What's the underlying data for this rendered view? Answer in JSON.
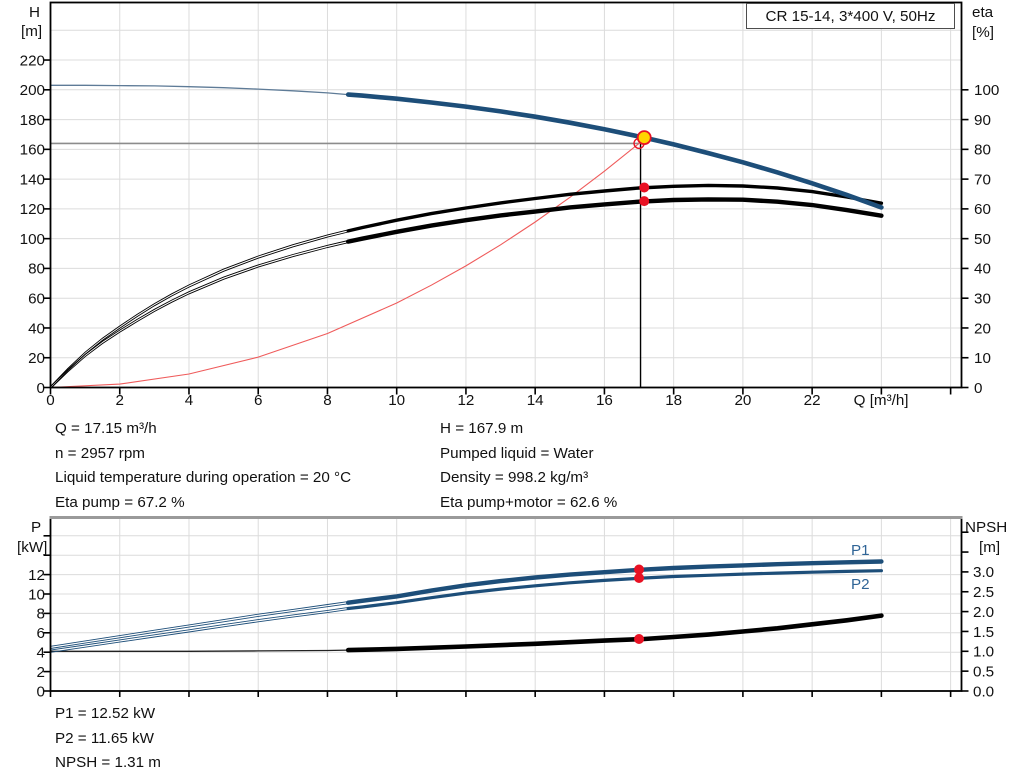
{
  "title_box": {
    "label": "CR 15-14, 3*400 V, 50Hz"
  },
  "axis_labels": {
    "h": "H",
    "m": "[m]",
    "eta": "eta",
    "pct": "[%]",
    "p": "P",
    "kw": "[kW]",
    "npsh": "NPSH",
    "m2": "[m]",
    "q": "Q [m³/h]"
  },
  "curve_labels": {
    "p1": "P1",
    "p2": "P2"
  },
  "readouts": {
    "top_left": [
      "Q = 17.15 m³/h",
      "n = 2957 rpm",
      "Liquid temperature during operation = 20 °C",
      "Eta pump = 67.2 %"
    ],
    "top_right": [
      "H = 167.9 m",
      "Pumped liquid = Water",
      "Density = 998.2 kg/m³",
      "Eta pump+motor = 62.6 %"
    ],
    "bottom": [
      "P1 = 12.52 kW",
      "P2 = 11.65 kW",
      "NPSH = 1.31 m"
    ]
  },
  "colors": {
    "curve_blue": "#1d4e79",
    "thin_blue": "#5e7b97",
    "black": "#000000",
    "red": "#e81123",
    "light_red": "#ef5b5b",
    "yellow": "#ffd400",
    "grid": "#dcdcdc",
    "gray_line": "#8c8c8c",
    "frame_gray": "#9a9a9a",
    "label_blue": "#2f6496"
  },
  "chart_data": [
    {
      "type": "line",
      "title": "CR 15-14, 3*400 V, 50Hz",
      "xlabel": "Q [m³/h]",
      "ylabel_left": "H [m]",
      "ylabel_right": "eta [%]",
      "x_range": [
        0,
        26.3
      ],
      "x_grid_step": 2,
      "y_left_range": [
        0,
        258
      ],
      "y_right_range": [
        0,
        129
      ],
      "x_tick_labels": [
        "0",
        "2",
        "4",
        "6",
        "8",
        "10",
        "12",
        "14",
        "16",
        "18",
        "20",
        "22"
      ],
      "y_left_tick_labels": [
        "0",
        "20",
        "40",
        "60",
        "80",
        "100",
        "120",
        "140",
        "160",
        "180",
        "200",
        "220"
      ],
      "y_right_tick_labels": [
        "0",
        "10",
        "20",
        "30",
        "40",
        "50",
        "60",
        "70",
        "80",
        "90",
        "100"
      ],
      "grid": true,
      "legend": "none",
      "series": [
        {
          "name": "QH head curve",
          "axis": "left",
          "style": "thin-then-thick",
          "thin_until": 8.6,
          "points": [
            [
              0,
              203
            ],
            [
              1,
              203
            ],
            [
              2,
              202.8
            ],
            [
              3,
              202.6
            ],
            [
              4,
              202.1
            ],
            [
              5,
              201.4
            ],
            [
              6,
              200.5
            ],
            [
              7,
              199.3
            ],
            [
              8,
              197.9
            ],
            [
              8.6,
              196.8
            ],
            [
              9,
              196.1
            ],
            [
              10,
              194
            ],
            [
              11,
              191.5
            ],
            [
              12,
              188.7
            ],
            [
              13,
              185.5
            ],
            [
              14,
              181.9
            ],
            [
              15,
              177.9
            ],
            [
              16,
              173.5
            ],
            [
              17.15,
              167.9
            ],
            [
              18,
              163.3
            ],
            [
              19,
              157.5
            ],
            [
              20,
              151.3
            ],
            [
              21,
              144.5
            ],
            [
              22,
              137.2
            ],
            [
              23,
              129.4
            ],
            [
              24,
              121
            ]
          ]
        },
        {
          "name": "Eta pump",
          "axis": "right",
          "style": "hollow-then-thick",
          "thin_until": 8.6,
          "points": [
            [
              0,
              0
            ],
            [
              0.5,
              6
            ],
            [
              1,
              11.5
            ],
            [
              1.5,
              16.2
            ],
            [
              2,
              20.3
            ],
            [
              2.5,
              24.2
            ],
            [
              3,
              27.8
            ],
            [
              3.5,
              31.1
            ],
            [
              4,
              34.1
            ],
            [
              5,
              39.4
            ],
            [
              6,
              43.8
            ],
            [
              7,
              47.6
            ],
            [
              8,
              50.9
            ],
            [
              8.6,
              52.6
            ],
            [
              9,
              53.7
            ],
            [
              10,
              56.2
            ],
            [
              11,
              58.4
            ],
            [
              12,
              60.3
            ],
            [
              13,
              62
            ],
            [
              14,
              63.5
            ],
            [
              15,
              64.9
            ],
            [
              16,
              66
            ],
            [
              17,
              67
            ],
            [
              18,
              67.6
            ],
            [
              19,
              67.9
            ],
            [
              20,
              67.7
            ],
            [
              21,
              67
            ],
            [
              22,
              65.8
            ],
            [
              23,
              64
            ],
            [
              24,
              61.9
            ]
          ]
        },
        {
          "name": "Eta pump+motor",
          "axis": "right",
          "style": "hollow-then-thick",
          "thin_until": 8.6,
          "points": [
            [
              0,
              0
            ],
            [
              0.5,
              5.6
            ],
            [
              1,
              10.7
            ],
            [
              1.5,
              15.1
            ],
            [
              2,
              18.9
            ],
            [
              2.5,
              22.5
            ],
            [
              3,
              25.9
            ],
            [
              3.5,
              29
            ],
            [
              4,
              31.8
            ],
            [
              5,
              36.7
            ],
            [
              6,
              40.8
            ],
            [
              7,
              44.3
            ],
            [
              8,
              47.4
            ],
            [
              8.6,
              49
            ],
            [
              9,
              50
            ],
            [
              10,
              52.3
            ],
            [
              11,
              54.4
            ],
            [
              12,
              56.2
            ],
            [
              13,
              57.8
            ],
            [
              14,
              59.1
            ],
            [
              15,
              60.5
            ],
            [
              16,
              61.5
            ],
            [
              17,
              62.4
            ],
            [
              18,
              63
            ],
            [
              19,
              63.2
            ],
            [
              20,
              63.1
            ],
            [
              21,
              62.4
            ],
            [
              22,
              61.3
            ],
            [
              23,
              59.6
            ],
            [
              24,
              57.7
            ]
          ]
        },
        {
          "name": "System curve",
          "axis": "left",
          "style": "hairline-red",
          "points": [
            [
              0,
              0
            ],
            [
              2,
              2.3
            ],
            [
              4,
              9.1
            ],
            [
              6,
              20.4
            ],
            [
              8,
              36.3
            ],
            [
              10,
              56.8
            ],
            [
              11,
              68.7
            ],
            [
              12,
              81.7
            ],
            [
              13,
              95.9
            ],
            [
              14,
              111.2
            ],
            [
              15,
              127.7
            ],
            [
              16,
              145.3
            ],
            [
              17,
              164
            ]
          ]
        }
      ],
      "duty_point": {
        "q": 17.15,
        "h": 167.9,
        "eta_pump": 67.2,
        "eta_pump_motor": 62.6,
        "requested_q": 17.0,
        "requested_h": 164.0
      }
    },
    {
      "type": "line",
      "title": "",
      "xlabel": "",
      "ylabel_left": "P [kW]",
      "ylabel_right": "NPSH [m]",
      "x_range": [
        0,
        26.3
      ],
      "x_grid_step": 2,
      "y_left_range": [
        0,
        17.9
      ],
      "y_right_range": [
        0,
        4.37
      ],
      "y_left_tick_labels": [
        "0",
        "2",
        "4",
        "6",
        "8",
        "10",
        "12"
      ],
      "y_right_tick_labels": [
        "0.0",
        "0.5",
        "1.0",
        "1.5",
        "2.0",
        "2.5",
        "3.0"
      ],
      "grid": true,
      "legend": "inline (P1, P2)",
      "series": [
        {
          "name": "P1",
          "axis": "left",
          "style": "hollow-then-thick",
          "thin_until": 8.6,
          "points": [
            [
              0,
              4.5
            ],
            [
              1,
              5.05
            ],
            [
              2,
              5.6
            ],
            [
              3,
              6.15
            ],
            [
              4,
              6.7
            ],
            [
              5,
              7.25
            ],
            [
              6,
              7.8
            ],
            [
              7,
              8.3
            ],
            [
              8,
              8.8
            ],
            [
              8.6,
              9.1
            ],
            [
              9,
              9.3
            ],
            [
              10,
              9.75
            ],
            [
              11,
              10.35
            ],
            [
              12,
              10.9
            ],
            [
              13,
              11.33
            ],
            [
              14,
              11.7
            ],
            [
              15,
              12
            ],
            [
              16,
              12.25
            ],
            [
              17,
              12.48
            ],
            [
              17.15,
              12.52
            ],
            [
              18,
              12.68
            ],
            [
              19,
              12.82
            ],
            [
              20,
              12.95
            ],
            [
              21,
              13.07
            ],
            [
              22,
              13.18
            ],
            [
              23,
              13.27
            ],
            [
              24,
              13.35
            ]
          ]
        },
        {
          "name": "P2",
          "axis": "left",
          "style": "hollow-then-thick",
          "thin_until": 8.6,
          "points": [
            [
              0,
              4.1
            ],
            [
              1,
              4.63
            ],
            [
              2,
              5.15
            ],
            [
              3,
              5.68
            ],
            [
              4,
              6.2
            ],
            [
              5,
              6.73
            ],
            [
              6,
              7.25
            ],
            [
              7,
              7.73
            ],
            [
              8,
              8.2
            ],
            [
              8.6,
              8.5
            ],
            [
              9,
              8.66
            ],
            [
              10,
              9.1
            ],
            [
              11,
              9.62
            ],
            [
              12,
              10.1
            ],
            [
              13,
              10.5
            ],
            [
              14,
              10.85
            ],
            [
              15,
              11.15
            ],
            [
              16,
              11.4
            ],
            [
              17,
              11.62
            ],
            [
              17.15,
              11.65
            ],
            [
              18,
              11.8
            ],
            [
              19,
              11.93
            ],
            [
              20,
              12.05
            ],
            [
              21,
              12.15
            ],
            [
              22,
              12.25
            ],
            [
              23,
              12.33
            ],
            [
              24,
              12.4
            ]
          ]
        },
        {
          "name": "NPSH",
          "axis": "right",
          "style": "thin-then-thick",
          "thin_until": 8.6,
          "points": [
            [
              0,
              1
            ],
            [
              2,
              1
            ],
            [
              4,
              1
            ],
            [
              6,
              1.01
            ],
            [
              8,
              1.02
            ],
            [
              8.6,
              1.03
            ],
            [
              10,
              1.06
            ],
            [
              12,
              1.12
            ],
            [
              14,
              1.19
            ],
            [
              16,
              1.27
            ],
            [
              17.15,
              1.31
            ],
            [
              18,
              1.36
            ],
            [
              19,
              1.42
            ],
            [
              20,
              1.5
            ],
            [
              21,
              1.58
            ],
            [
              22,
              1.68
            ],
            [
              23,
              1.78
            ],
            [
              24,
              1.9
            ]
          ]
        }
      ],
      "duty_point": {
        "q": 17.15,
        "p1": 12.52,
        "p2": 11.65,
        "npsh": 1.31
      }
    }
  ]
}
